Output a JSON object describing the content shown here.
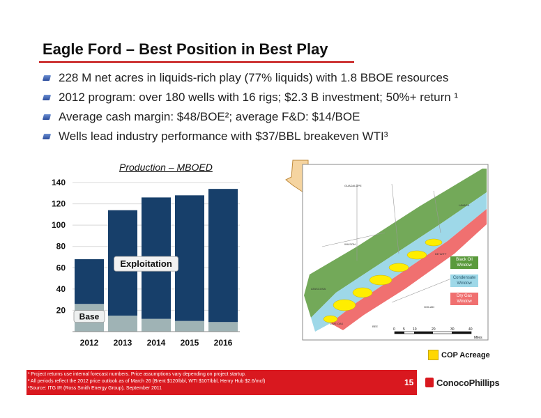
{
  "title": "Eagle Ford – Best Position in Best Play",
  "bullets": [
    "228 M net acres in liquids-rich play (77% liquids) with 1.8 BBOE resources",
    "2012 program: over 180 wells with 16 rigs; $2.3 B investment; 50%+ return ¹",
    "Average cash margin: $48/BOE²; average F&D: $14/BOE",
    "Wells lead industry performance with $37/BBL breakeven WTI³"
  ],
  "chart_data": {
    "type": "bar",
    "title": "Production – MBOED",
    "categories": [
      "2012",
      "2013",
      "2014",
      "2015",
      "2016"
    ],
    "series": [
      {
        "name": "Base",
        "values": [
          26,
          15,
          12,
          10,
          9
        ],
        "color": "#9fb3b5"
      },
      {
        "name": "Exploitation",
        "values": [
          42,
          99,
          114,
          118,
          125
        ],
        "color": "#173f6a"
      }
    ],
    "ylim": [
      0,
      140
    ],
    "yticks": [
      20,
      40,
      60,
      80,
      100,
      120,
      140
    ],
    "grid": true,
    "stacked": true
  },
  "map": {
    "labels": [
      "GUADALUPE",
      "WILSON",
      "ATASCOSA",
      "LIVE OAK",
      "BEE",
      "GOLIAD",
      "LAVACA",
      "DE WITT"
    ],
    "windows": [
      {
        "label": "Black Oil Window",
        "color": "#5a9a3c"
      },
      {
        "label": "Condensate Window",
        "color": "#9ed8e8"
      },
      {
        "label": "Dry Gas Window",
        "color": "#f07070"
      }
    ],
    "scale_ticks": [
      "0",
      "5",
      "10",
      "20",
      "30",
      "40"
    ],
    "scale_unit": "Miles"
  },
  "legend_acreage": "COP Acreage",
  "footnotes": [
    "¹ Project returns use internal forecast numbers. Price assumptions vary depending on project startup.",
    "² All periods reflect the 2012 price outlook as of March 26 (Brent $120/bbl, WTI $107/bbl, Henry Hub $2.6/mcf)",
    "³Source:  ITG IR (Ross Smith Energy Group), September 2011"
  ],
  "page_number": "15",
  "logo_text": "ConocoPhillips",
  "colors": {
    "accent_red": "#d9181f",
    "bar_dark": "#173f6a",
    "bar_base": "#9fb3b5",
    "acreage": "#ffd700"
  }
}
